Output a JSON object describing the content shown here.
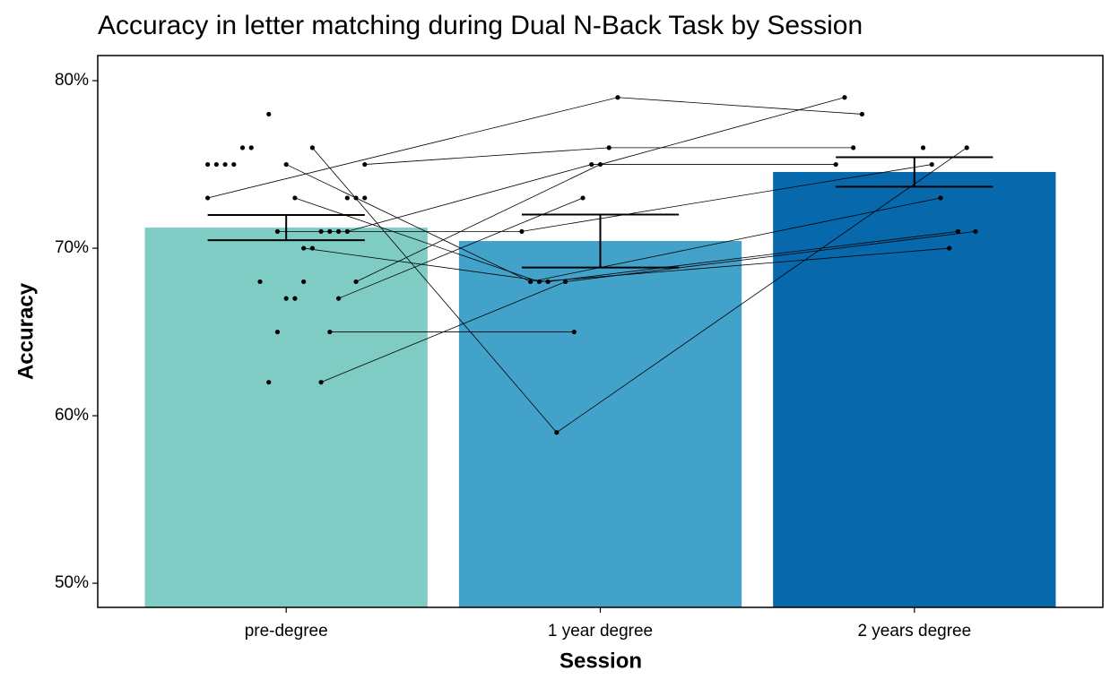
{
  "chart_data": {
    "type": "bar",
    "title": "Accuracy in letter matching during Dual N-Back Task by Session",
    "x_label": "Session",
    "y_label": "Accuracy",
    "categories": [
      "pre-degree",
      "1 year degree",
      "2 years degree"
    ],
    "values": [
      71.23,
      70.43,
      74.55
    ],
    "errors": [
      0.75,
      1.58,
      0.88
    ],
    "colors": [
      "#7fccc4",
      "#43a2ca",
      "#0868ac"
    ],
    "ylim": [
      48.56,
      81.5
    ],
    "yticks": [
      {
        "value": 50,
        "label": "50%"
      },
      {
        "value": 60,
        "label": "60%"
      },
      {
        "value": 70,
        "label": "70%"
      },
      {
        "value": 80,
        "label": "80%"
      }
    ],
    "grid": false,
    "subjects": [
      [
        73,
        79,
        78
      ],
      [
        75,
        76,
        76
      ],
      [
        68,
        75,
        79
      ],
      [
        71,
        75,
        75
      ],
      [
        67,
        73,
        null
      ],
      [
        65,
        65,
        null
      ],
      [
        62,
        68,
        71
      ],
      [
        76,
        59,
        76
      ],
      [
        70,
        68,
        71
      ],
      [
        73,
        68,
        70
      ],
      [
        75,
        68,
        73
      ],
      [
        71,
        71,
        75
      ],
      [
        78,
        null,
        76
      ],
      [
        68,
        null,
        null
      ],
      [
        76,
        null,
        null
      ],
      [
        76,
        null,
        null
      ],
      [
        75,
        null,
        null
      ],
      [
        75,
        null,
        null
      ],
      [
        75,
        null,
        null
      ],
      [
        75,
        null,
        null
      ],
      [
        73,
        null,
        null
      ],
      [
        73,
        null,
        null
      ],
      [
        73,
        null,
        null
      ],
      [
        71,
        null,
        null
      ],
      [
        71,
        null,
        null
      ],
      [
        71,
        null,
        null
      ],
      [
        70,
        null,
        null
      ],
      [
        68,
        null,
        null
      ],
      [
        67,
        null,
        null
      ],
      [
        67,
        null,
        null
      ],
      [
        65,
        null,
        null
      ],
      [
        62,
        null,
        null
      ]
    ]
  }
}
